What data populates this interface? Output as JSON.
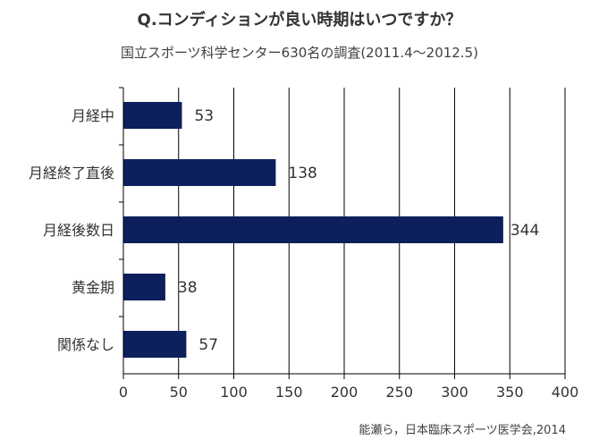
{
  "chart_data": {
    "type": "bar",
    "orientation": "horizontal",
    "title": "Q.コンディションが良い時期はいつですか？",
    "subtitle": "国立スポーツ科学センター630名の調査(2011.4～2012.5)",
    "categories": [
      "月経中",
      "月経終了直後",
      "月経後数日",
      "黄金期",
      "関係なし"
    ],
    "values": [
      53,
      138,
      344,
      38,
      57
    ],
    "value_labels": [
      "53",
      "138",
      "344",
      "38",
      "57"
    ],
    "xlim": [
      0,
      400
    ],
    "xticks": [
      "0",
      "50",
      "100",
      "150",
      "200",
      "250",
      "300",
      "350",
      "400"
    ],
    "xlabel": "",
    "ylabel": "",
    "grid": "vertical",
    "bar_color": "#0d1f5c",
    "source": "能瀬ら，日本臨床スポーツ医学会,2014"
  }
}
